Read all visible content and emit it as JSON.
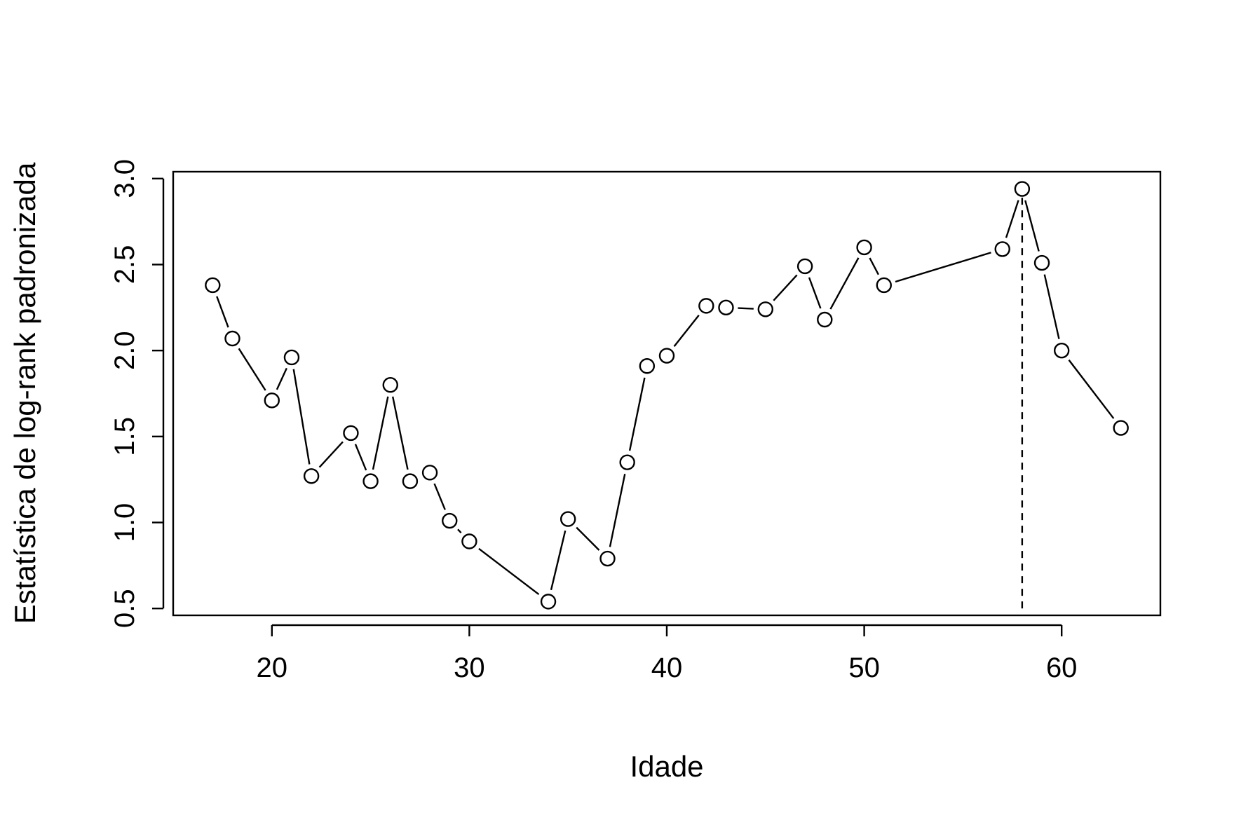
{
  "chart_data": {
    "type": "line",
    "markers": "open-circle",
    "xlabel": "Idade",
    "ylabel": "Estatística de log-rank padronizada",
    "xlim": [
      15,
      65
    ],
    "ylim": [
      0.46,
      3.04
    ],
    "xticks": [
      20,
      30,
      40,
      50,
      60
    ],
    "yticks": [
      0.5,
      1.0,
      1.5,
      2.0,
      2.5,
      3.0
    ],
    "xtick_labels": [
      "20",
      "30",
      "40",
      "50",
      "60"
    ],
    "ytick_labels": [
      "0.5",
      "1.0",
      "1.5",
      "2.0",
      "2.5",
      "3.0"
    ],
    "grid": false,
    "series": [
      {
        "x": [
          17,
          18,
          20,
          21,
          22,
          24,
          25,
          26,
          27,
          28,
          29,
          30,
          34,
          35,
          37,
          38,
          39,
          40,
          42,
          43,
          45,
          47,
          48,
          50,
          51,
          57,
          58,
          59,
          60,
          63
        ],
        "y": [
          2.38,
          2.07,
          1.71,
          1.96,
          1.27,
          1.52,
          1.24,
          1.8,
          1.24,
          1.29,
          1.01,
          0.89,
          0.54,
          1.02,
          0.79,
          1.35,
          1.91,
          1.97,
          2.26,
          2.25,
          2.24,
          2.49,
          2.18,
          2.6,
          2.38,
          2.59,
          2.94,
          2.51,
          2.0,
          1.55
        ]
      }
    ],
    "vline": {
      "x": 58,
      "style": "dashed"
    }
  }
}
